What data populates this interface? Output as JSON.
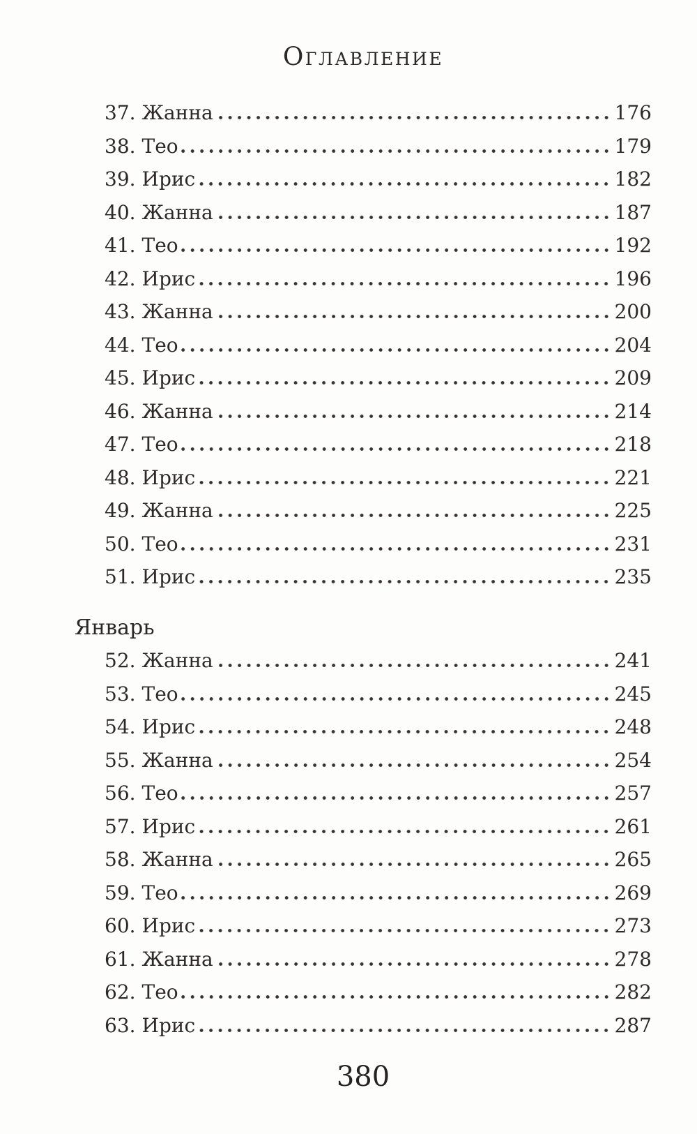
{
  "page": {
    "title": "Оглавление",
    "folio": "380"
  },
  "toc": {
    "sections": [
      {
        "heading": "",
        "entries": [
          {
            "num": "37.",
            "name": "Жанна",
            "page": "176"
          },
          {
            "num": "38.",
            "name": "Тео",
            "page": "179"
          },
          {
            "num": "39.",
            "name": "Ирис",
            "page": "182"
          },
          {
            "num": "40.",
            "name": "Жанна",
            "page": "187"
          },
          {
            "num": "41.",
            "name": "Тео",
            "page": "192"
          },
          {
            "num": "42.",
            "name": "Ирис",
            "page": "196"
          },
          {
            "num": "43.",
            "name": "Жанна",
            "page": "200"
          },
          {
            "num": "44.",
            "name": "Тео",
            "page": "204"
          },
          {
            "num": "45.",
            "name": "Ирис",
            "page": "209"
          },
          {
            "num": "46.",
            "name": "Жанна",
            "page": "214"
          },
          {
            "num": "47.",
            "name": "Тео",
            "page": "218"
          },
          {
            "num": "48.",
            "name": "Ирис",
            "page": "221"
          },
          {
            "num": "49.",
            "name": "Жанна",
            "page": "225"
          },
          {
            "num": "50.",
            "name": "Тео",
            "page": "231"
          },
          {
            "num": "51.",
            "name": "Ирис",
            "page": "235"
          }
        ]
      },
      {
        "heading": "Январь",
        "entries": [
          {
            "num": "52.",
            "name": "Жанна",
            "page": "241"
          },
          {
            "num": "53.",
            "name": "Тео",
            "page": "245"
          },
          {
            "num": "54.",
            "name": "Ирис",
            "page": "248"
          },
          {
            "num": "55.",
            "name": "Жанна",
            "page": "254"
          },
          {
            "num": "56.",
            "name": "Тео",
            "page": "257"
          },
          {
            "num": "57.",
            "name": "Ирис",
            "page": "261"
          },
          {
            "num": "58.",
            "name": "Жанна",
            "page": "265"
          },
          {
            "num": "59.",
            "name": "Тео",
            "page": "269"
          },
          {
            "num": "60.",
            "name": "Ирис",
            "page": "273"
          },
          {
            "num": "61.",
            "name": "Жанна",
            "page": "278"
          },
          {
            "num": "62.",
            "name": "Тео",
            "page": "282"
          },
          {
            "num": "63.",
            "name": "Ирис",
            "page": "287"
          }
        ]
      }
    ]
  }
}
